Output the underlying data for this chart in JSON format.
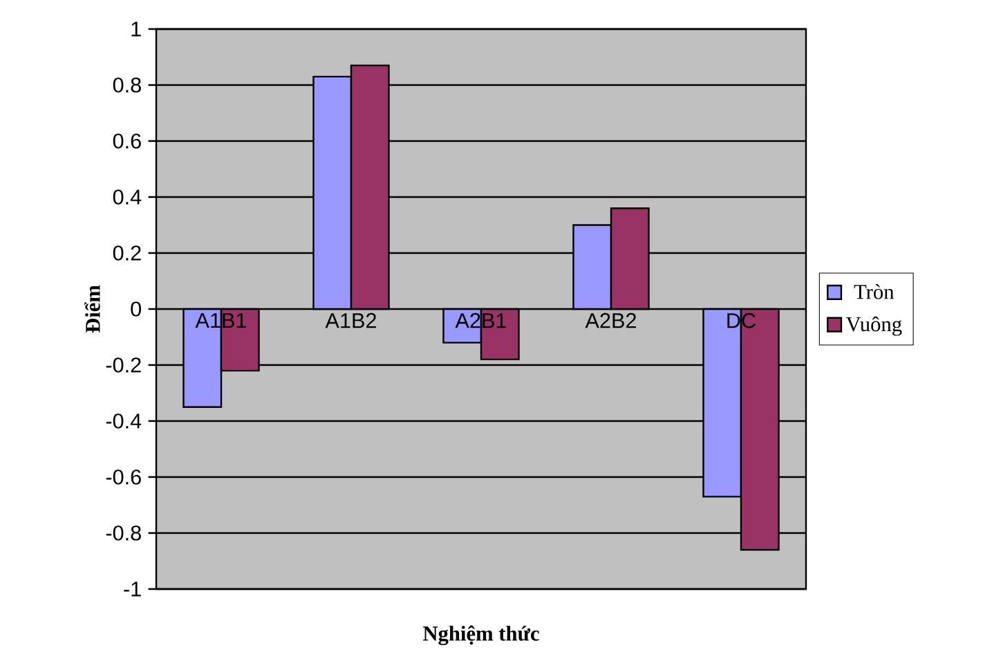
{
  "chart_data": {
    "type": "bar",
    "xlabel": "Nghiệm thức",
    "ylabel": "Điểm",
    "categories": [
      "A1B1",
      "A1B2",
      "A2B1",
      "A2B2",
      "DC"
    ],
    "series": [
      {
        "name": "Tròn",
        "color": "#9999ff",
        "values": [
          -0.35,
          0.83,
          -0.12,
          0.3,
          -0.67
        ]
      },
      {
        "name": "Vuông",
        "color": "#993366",
        "values": [
          -0.22,
          0.87,
          -0.18,
          0.36,
          -0.86
        ]
      }
    ],
    "ylim": [
      -1,
      1
    ],
    "yticks": [
      -1,
      -0.8,
      -0.6,
      -0.4,
      -0.2,
      0,
      0.2,
      0.4,
      0.6,
      0.8,
      1
    ],
    "grid": "y",
    "legend": "right"
  }
}
